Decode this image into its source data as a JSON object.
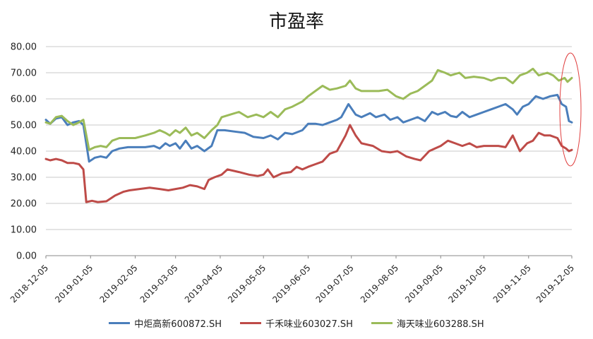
{
  "chart_data": {
    "type": "line",
    "title": "市盈率",
    "xlabel": "",
    "ylabel": "",
    "ylim": [
      0,
      80
    ],
    "yticks": [
      "0.00",
      "10.00",
      "20.00",
      "30.00",
      "40.00",
      "50.00",
      "60.00",
      "70.00",
      "80.00"
    ],
    "xticks": [
      "2018-12-05",
      "2019-01-05",
      "2019-02-05",
      "2019-03-05",
      "2019-04-05",
      "2019-05-05",
      "2019-06-05",
      "2019-07-05",
      "2019-08-05",
      "2019-09-05",
      "2019-10-05",
      "2019-11-05",
      "2019-12-05"
    ],
    "grid": "horizontal",
    "legend_position": "bottom",
    "annotation": "red ellipse highlighting the last data points",
    "series": [
      {
        "name": "中炬高新600872.SH",
        "color": "#4a7ebb",
        "points": [
          [
            "2018-12-05",
            52
          ],
          [
            "2018-12-08",
            50.5
          ],
          [
            "2018-12-12",
            52.5
          ],
          [
            "2018-12-16",
            53
          ],
          [
            "2018-12-20",
            50
          ],
          [
            "2018-12-24",
            51
          ],
          [
            "2018-12-28",
            51.5
          ],
          [
            "2018-12-31",
            50
          ],
          [
            "2019-01-04",
            36
          ],
          [
            "2019-01-08",
            37.5
          ],
          [
            "2019-01-12",
            38
          ],
          [
            "2019-01-16",
            37.5
          ],
          [
            "2019-01-20",
            40
          ],
          [
            "2019-01-25",
            41
          ],
          [
            "2019-01-31",
            41.5
          ],
          [
            "2019-02-05",
            41.5
          ],
          [
            "2019-02-12",
            41.5
          ],
          [
            "2019-02-18",
            42
          ],
          [
            "2019-02-22",
            41
          ],
          [
            "2019-02-26",
            43
          ],
          [
            "2019-03-01",
            42
          ],
          [
            "2019-03-05",
            43
          ],
          [
            "2019-03-08",
            41
          ],
          [
            "2019-03-12",
            44
          ],
          [
            "2019-03-16",
            41
          ],
          [
            "2019-03-20",
            42
          ],
          [
            "2019-03-25",
            40
          ],
          [
            "2019-03-30",
            42
          ],
          [
            "2019-04-03",
            48
          ],
          [
            "2019-04-08",
            48
          ],
          [
            "2019-04-15",
            47.5
          ],
          [
            "2019-04-22",
            47
          ],
          [
            "2019-04-28",
            45.5
          ],
          [
            "2019-05-05",
            45
          ],
          [
            "2019-05-10",
            46
          ],
          [
            "2019-05-15",
            44.5
          ],
          [
            "2019-05-20",
            47
          ],
          [
            "2019-05-25",
            46.5
          ],
          [
            "2019-06-01",
            48
          ],
          [
            "2019-06-05",
            50.5
          ],
          [
            "2019-06-10",
            50.5
          ],
          [
            "2019-06-15",
            50
          ],
          [
            "2019-06-20",
            51
          ],
          [
            "2019-06-25",
            52
          ],
          [
            "2019-06-28",
            53
          ],
          [
            "2019-07-03",
            58
          ],
          [
            "2019-07-08",
            54
          ],
          [
            "2019-07-12",
            53
          ],
          [
            "2019-07-18",
            54.5
          ],
          [
            "2019-07-22",
            53
          ],
          [
            "2019-07-28",
            54
          ],
          [
            "2019-08-01",
            52
          ],
          [
            "2019-08-06",
            53
          ],
          [
            "2019-08-10",
            51
          ],
          [
            "2019-08-15",
            52
          ],
          [
            "2019-08-20",
            53
          ],
          [
            "2019-08-25",
            51.5
          ],
          [
            "2019-08-30",
            55
          ],
          [
            "2019-09-03",
            54
          ],
          [
            "2019-09-08",
            55
          ],
          [
            "2019-09-12",
            53.5
          ],
          [
            "2019-09-16",
            53
          ],
          [
            "2019-09-20",
            55
          ],
          [
            "2019-09-25",
            53
          ],
          [
            "2019-09-30",
            54
          ],
          [
            "2019-10-05",
            55
          ],
          [
            "2019-10-10",
            56
          ],
          [
            "2019-10-15",
            57
          ],
          [
            "2019-10-20",
            58
          ],
          [
            "2019-10-25",
            56
          ],
          [
            "2019-10-28",
            54
          ],
          [
            "2019-11-01",
            57
          ],
          [
            "2019-11-05",
            58
          ],
          [
            "2019-11-10",
            61
          ],
          [
            "2019-11-15",
            60
          ],
          [
            "2019-11-20",
            61
          ],
          [
            "2019-11-25",
            61.5
          ],
          [
            "2019-11-28",
            58
          ],
          [
            "2019-12-01",
            57
          ],
          [
            "2019-12-03",
            51.5
          ],
          [
            "2019-12-05",
            51
          ]
        ]
      },
      {
        "name": "千禾味业603027.SH",
        "color": "#be4b48",
        "points": [
          [
            "2018-12-05",
            37
          ],
          [
            "2018-12-08",
            36.5
          ],
          [
            "2018-12-12",
            37
          ],
          [
            "2018-12-16",
            36.5
          ],
          [
            "2018-12-20",
            35.5
          ],
          [
            "2018-12-24",
            35.5
          ],
          [
            "2018-12-28",
            35
          ],
          [
            "2018-12-31",
            33
          ],
          [
            "2019-01-02",
            20.5
          ],
          [
            "2019-01-06",
            21
          ],
          [
            "2019-01-10",
            20.5
          ],
          [
            "2019-01-16",
            20.8
          ],
          [
            "2019-01-22",
            23
          ],
          [
            "2019-01-28",
            24.5
          ],
          [
            "2019-02-01",
            25
          ],
          [
            "2019-02-08",
            25.5
          ],
          [
            "2019-02-15",
            26
          ],
          [
            "2019-02-22",
            25.5
          ],
          [
            "2019-02-28",
            25
          ],
          [
            "2019-03-05",
            25.5
          ],
          [
            "2019-03-10",
            26
          ],
          [
            "2019-03-15",
            27
          ],
          [
            "2019-03-20",
            26.5
          ],
          [
            "2019-03-25",
            25.5
          ],
          [
            "2019-03-28",
            29
          ],
          [
            "2019-04-01",
            30
          ],
          [
            "2019-04-06",
            31
          ],
          [
            "2019-04-10",
            33
          ],
          [
            "2019-04-18",
            32
          ],
          [
            "2019-04-25",
            31
          ],
          [
            "2019-05-01",
            30.5
          ],
          [
            "2019-05-05",
            31
          ],
          [
            "2019-05-08",
            33
          ],
          [
            "2019-05-12",
            30
          ],
          [
            "2019-05-18",
            31.5
          ],
          [
            "2019-05-24",
            32
          ],
          [
            "2019-05-28",
            34
          ],
          [
            "2019-06-01",
            33
          ],
          [
            "2019-06-05",
            34
          ],
          [
            "2019-06-10",
            35
          ],
          [
            "2019-06-15",
            36
          ],
          [
            "2019-06-20",
            39
          ],
          [
            "2019-06-25",
            40
          ],
          [
            "2019-07-01",
            46
          ],
          [
            "2019-07-04",
            50
          ],
          [
            "2019-07-08",
            46
          ],
          [
            "2019-07-12",
            43
          ],
          [
            "2019-07-20",
            42
          ],
          [
            "2019-07-26",
            40
          ],
          [
            "2019-08-01",
            39.5
          ],
          [
            "2019-08-06",
            40
          ],
          [
            "2019-08-12",
            38
          ],
          [
            "2019-08-18",
            37
          ],
          [
            "2019-08-22",
            36.5
          ],
          [
            "2019-08-28",
            40
          ],
          [
            "2019-09-01",
            41
          ],
          [
            "2019-09-05",
            42
          ],
          [
            "2019-09-10",
            44
          ],
          [
            "2019-09-15",
            43
          ],
          [
            "2019-09-20",
            42
          ],
          [
            "2019-09-25",
            43
          ],
          [
            "2019-09-30",
            41.5
          ],
          [
            "2019-10-05",
            42
          ],
          [
            "2019-10-10",
            42
          ],
          [
            "2019-10-15",
            42
          ],
          [
            "2019-10-20",
            41.5
          ],
          [
            "2019-10-25",
            46
          ],
          [
            "2019-10-30",
            40
          ],
          [
            "2019-11-04",
            43
          ],
          [
            "2019-11-08",
            44
          ],
          [
            "2019-11-12",
            47
          ],
          [
            "2019-11-16",
            46
          ],
          [
            "2019-11-20",
            46
          ],
          [
            "2019-11-25",
            45
          ],
          [
            "2019-11-28",
            42
          ],
          [
            "2019-12-01",
            41
          ],
          [
            "2019-12-03",
            40
          ],
          [
            "2019-12-05",
            40.5
          ]
        ]
      },
      {
        "name": "海天味业603288.SH",
        "color": "#9bbb59",
        "points": [
          [
            "2018-12-05",
            51
          ],
          [
            "2018-12-08",
            50.5
          ],
          [
            "2018-12-12",
            53
          ],
          [
            "2018-12-16",
            53.5
          ],
          [
            "2018-12-20",
            51.5
          ],
          [
            "2018-12-24",
            50
          ],
          [
            "2018-12-28",
            51
          ],
          [
            "2018-12-31",
            52
          ],
          [
            "2019-01-04",
            40.5
          ],
          [
            "2019-01-08",
            41.5
          ],
          [
            "2019-01-12",
            42
          ],
          [
            "2019-01-16",
            41.5
          ],
          [
            "2019-01-20",
            44
          ],
          [
            "2019-01-25",
            45
          ],
          [
            "2019-01-31",
            45
          ],
          [
            "2019-02-05",
            45
          ],
          [
            "2019-02-12",
            46
          ],
          [
            "2019-02-18",
            47
          ],
          [
            "2019-02-22",
            48
          ],
          [
            "2019-02-26",
            47
          ],
          [
            "2019-03-01",
            46
          ],
          [
            "2019-03-05",
            48
          ],
          [
            "2019-03-08",
            47
          ],
          [
            "2019-03-12",
            49
          ],
          [
            "2019-03-16",
            46
          ],
          [
            "2019-03-20",
            47
          ],
          [
            "2019-03-25",
            45
          ],
          [
            "2019-03-30",
            48
          ],
          [
            "2019-04-03",
            50
          ],
          [
            "2019-04-06",
            53
          ],
          [
            "2019-04-12",
            54
          ],
          [
            "2019-04-18",
            55
          ],
          [
            "2019-04-24",
            53
          ],
          [
            "2019-04-30",
            54
          ],
          [
            "2019-05-05",
            53
          ],
          [
            "2019-05-10",
            55
          ],
          [
            "2019-05-15",
            53
          ],
          [
            "2019-05-20",
            56
          ],
          [
            "2019-05-25",
            57
          ],
          [
            "2019-06-01",
            59
          ],
          [
            "2019-06-05",
            61
          ],
          [
            "2019-06-10",
            63
          ],
          [
            "2019-06-15",
            65
          ],
          [
            "2019-06-20",
            63.5
          ],
          [
            "2019-06-25",
            64
          ],
          [
            "2019-07-01",
            65
          ],
          [
            "2019-07-04",
            67
          ],
          [
            "2019-07-08",
            64
          ],
          [
            "2019-07-12",
            63
          ],
          [
            "2019-07-18",
            63
          ],
          [
            "2019-07-24",
            63
          ],
          [
            "2019-07-30",
            63.5
          ],
          [
            "2019-08-05",
            61
          ],
          [
            "2019-08-10",
            60
          ],
          [
            "2019-08-15",
            62
          ],
          [
            "2019-08-20",
            63
          ],
          [
            "2019-08-25",
            65
          ],
          [
            "2019-08-30",
            67
          ],
          [
            "2019-09-03",
            71
          ],
          [
            "2019-09-08",
            70
          ],
          [
            "2019-09-12",
            69
          ],
          [
            "2019-09-18",
            70
          ],
          [
            "2019-09-22",
            68
          ],
          [
            "2019-09-28",
            68.5
          ],
          [
            "2019-10-05",
            68
          ],
          [
            "2019-10-10",
            67
          ],
          [
            "2019-10-15",
            68
          ],
          [
            "2019-10-20",
            68
          ],
          [
            "2019-10-25",
            66
          ],
          [
            "2019-10-30",
            69
          ],
          [
            "2019-11-04",
            70
          ],
          [
            "2019-11-08",
            71.5
          ],
          [
            "2019-11-12",
            69
          ],
          [
            "2019-11-18",
            70
          ],
          [
            "2019-11-22",
            69
          ],
          [
            "2019-11-26",
            67
          ],
          [
            "2019-11-30",
            68
          ],
          [
            "2019-12-02",
            66.5
          ],
          [
            "2019-12-05",
            68
          ]
        ]
      }
    ]
  }
}
